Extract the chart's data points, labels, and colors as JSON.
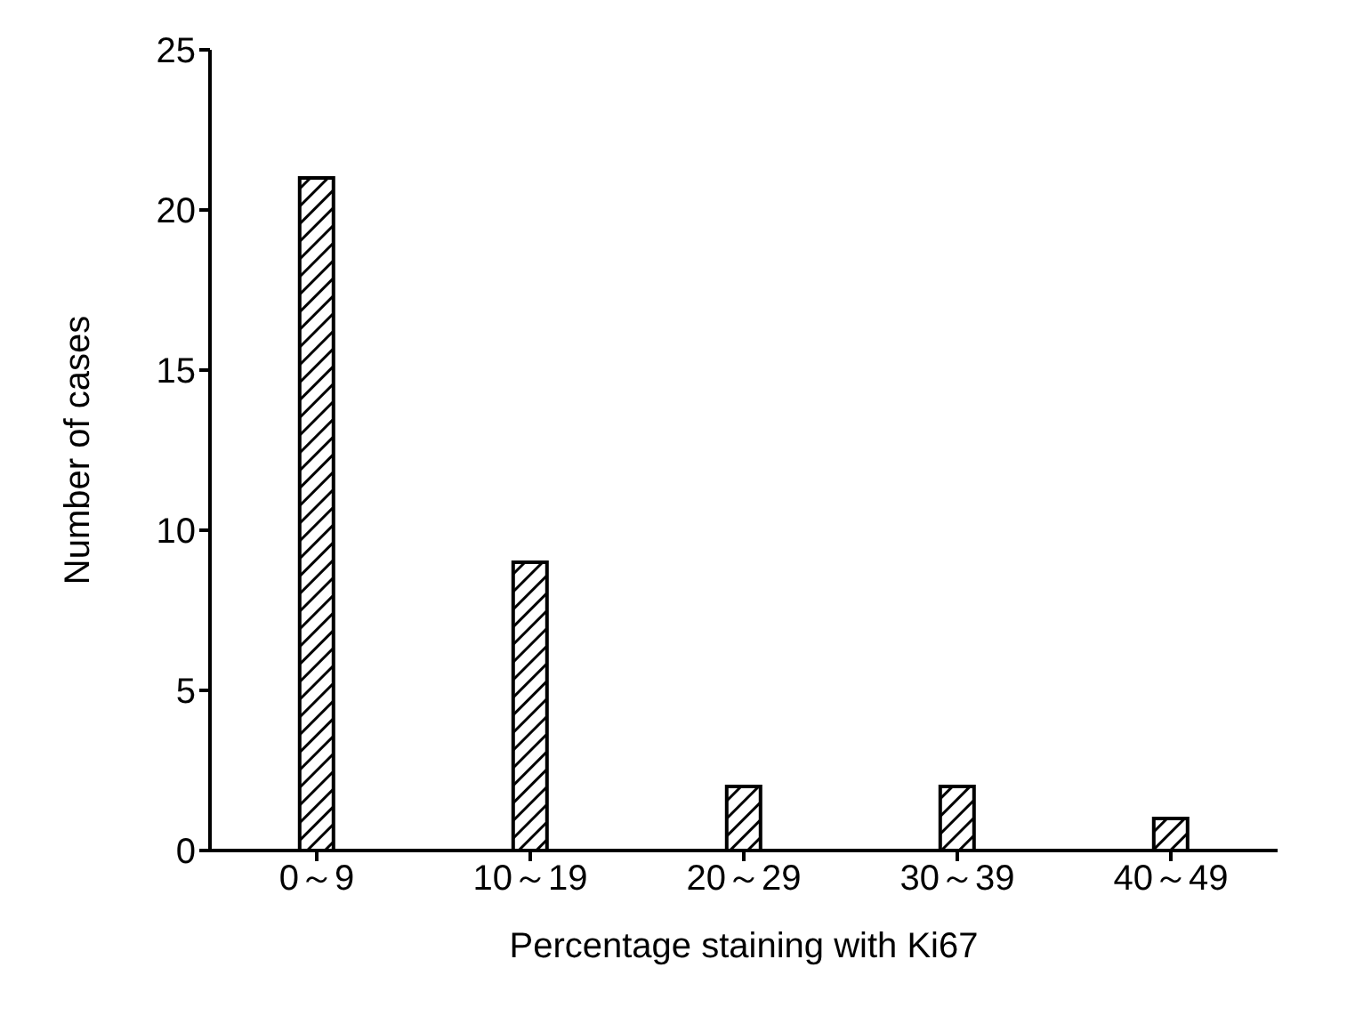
{
  "chart_data": {
    "type": "bar",
    "xlabel": "Percentage staining with Ki67",
    "ylabel": "Number of cases",
    "categories": [
      "0～9",
      "10～19",
      "20～29",
      "30～39",
      "40～49"
    ],
    "values": [
      21,
      9,
      2,
      2,
      1
    ],
    "color": "#000000",
    "ylim": [
      0,
      25
    ],
    "yticks": [
      0,
      5,
      10,
      15,
      20,
      25
    ],
    "grid": false,
    "legend": false
  }
}
